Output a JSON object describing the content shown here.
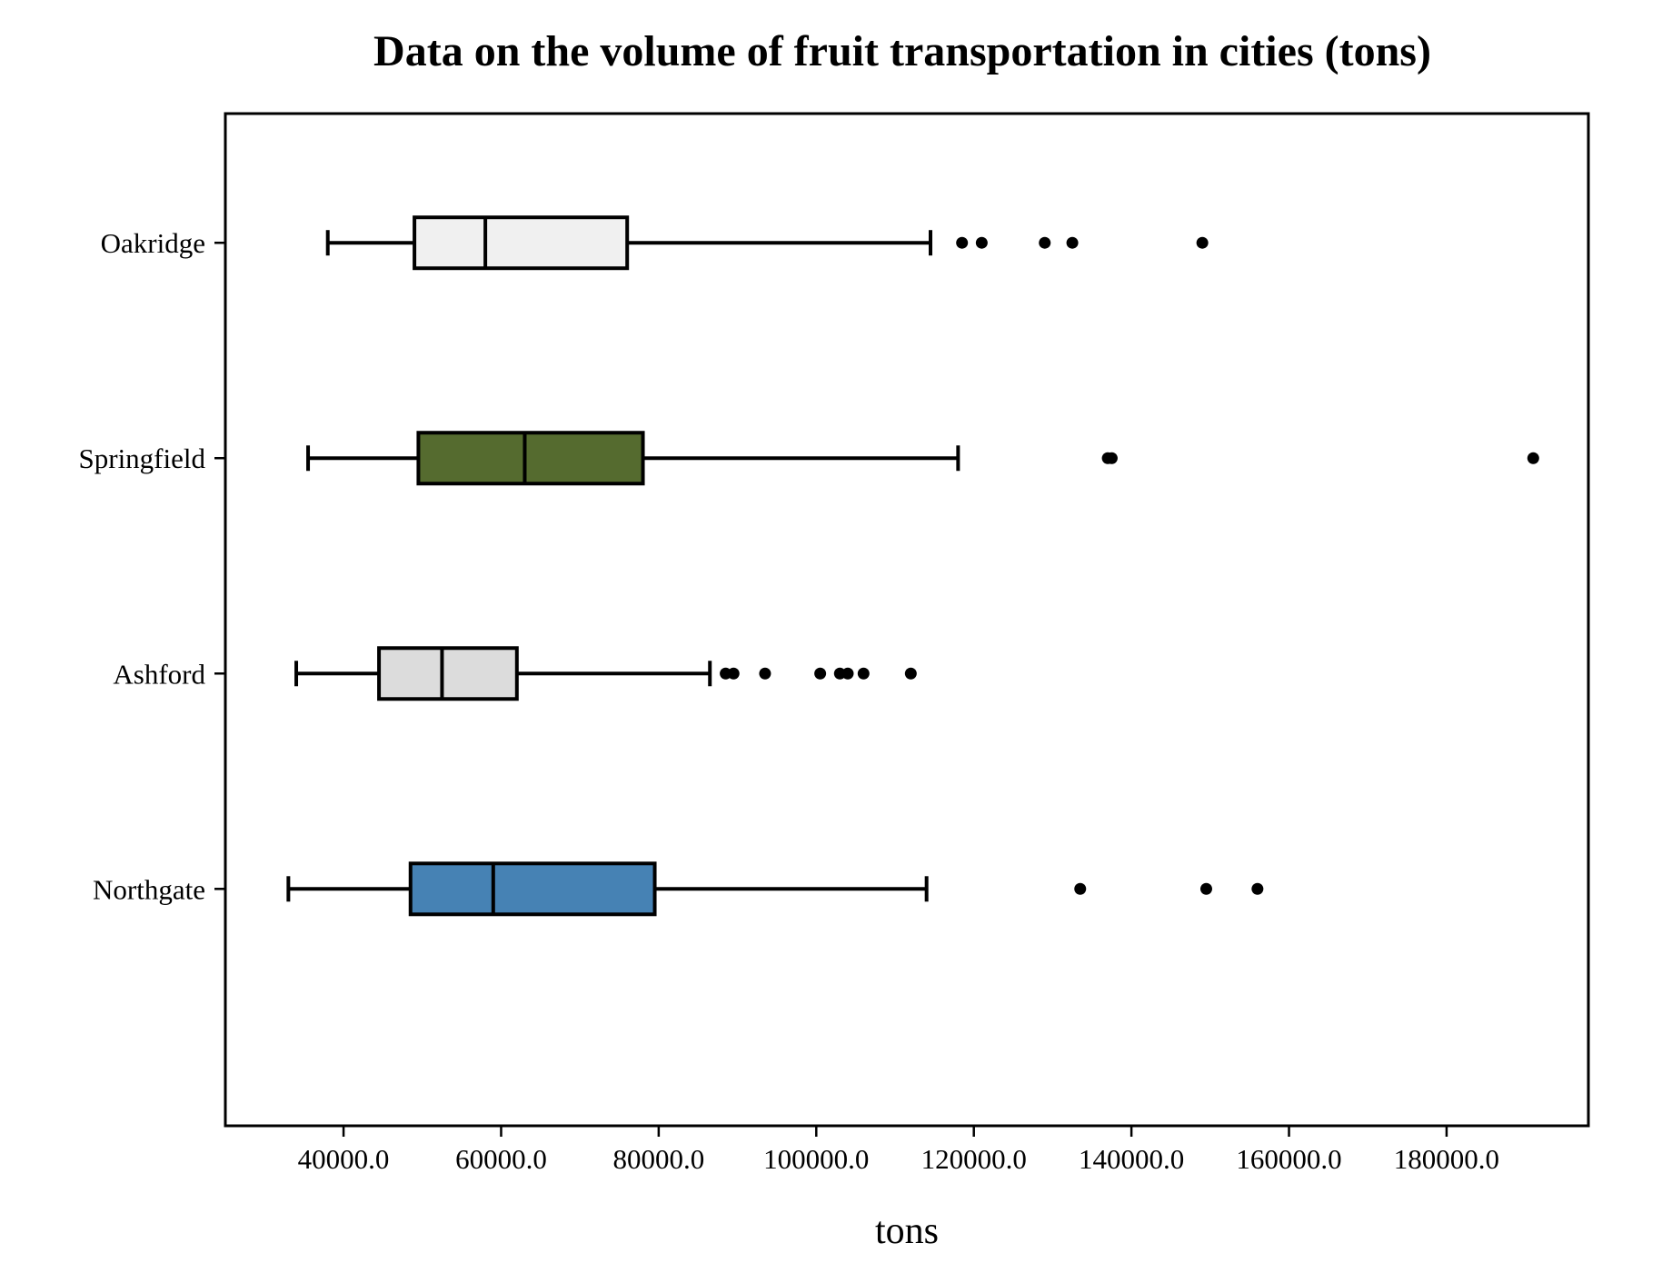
{
  "chart_data": {
    "type": "boxplot",
    "orientation": "horizontal",
    "title": "Data on the volume of fruit transportation in cities (tons)",
    "xlabel": "tons",
    "ylabel": "",
    "xlim": [
      25000,
      198000
    ],
    "xticks": [
      40000,
      60000,
      80000,
      100000,
      120000,
      140000,
      160000,
      180000
    ],
    "xtick_labels": [
      "40000.0",
      "60000.0",
      "80000.0",
      "100000.0",
      "120000.0",
      "140000.0",
      "160000.0",
      "180000.0"
    ],
    "grid": false,
    "categories": [
      "Oakridge",
      "Springfield",
      "Ashford",
      "Northgate"
    ],
    "series": [
      {
        "name": "Oakridge",
        "color": "#f0f0f0",
        "whisker_low": 38000,
        "q1": 49000,
        "median": 58000,
        "q3": 76000,
        "whisker_high": 114500,
        "outliers": [
          118500,
          121000,
          129000,
          132500,
          149000
        ]
      },
      {
        "name": "Springfield",
        "color": "#556b2f",
        "whisker_low": 35500,
        "q1": 49500,
        "median": 63000,
        "q3": 78000,
        "whisker_high": 118000,
        "outliers": [
          137000,
          137500,
          191000
        ]
      },
      {
        "name": "Ashford",
        "color": "#dcdcdc",
        "whisker_low": 34000,
        "q1": 44500,
        "median": 52500,
        "q3": 62000,
        "whisker_high": 86500,
        "outliers": [
          88500,
          89500,
          93500,
          100500,
          103000,
          104000,
          106000,
          112000
        ]
      },
      {
        "name": "Northgate",
        "color": "#4682b4",
        "whisker_low": 33000,
        "q1": 48500,
        "median": 59000,
        "q3": 79500,
        "whisker_high": 114000,
        "outliers": [
          133500,
          149500,
          156000
        ]
      }
    ]
  }
}
